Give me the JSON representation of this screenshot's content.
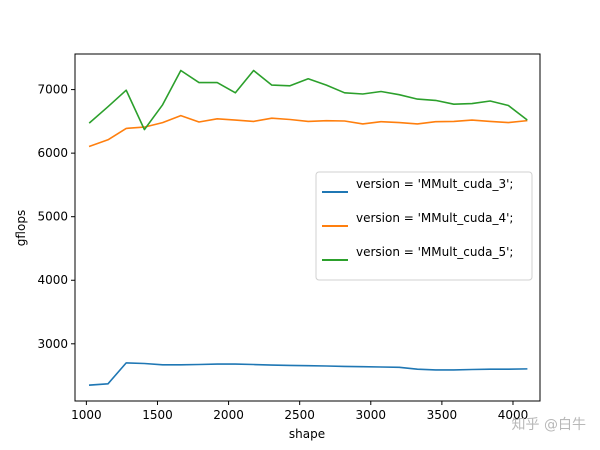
{
  "chart_data": {
    "type": "line",
    "title": "",
    "xlabel": "shape",
    "ylabel": "gflops",
    "xlim": [
      920,
      4190
    ],
    "ylim": [
      2100,
      7560
    ],
    "xticks": [
      1000,
      1500,
      2000,
      2500,
      3000,
      3500,
      4000
    ],
    "yticks": [
      3000,
      4000,
      5000,
      6000,
      7000
    ],
    "legend_position": "center-right",
    "grid": false,
    "x": [
      1024,
      1152,
      1280,
      1408,
      1536,
      1664,
      1792,
      1920,
      2048,
      2176,
      2304,
      2432,
      2560,
      2688,
      2816,
      2944,
      3072,
      3200,
      3328,
      3456,
      3584,
      3712,
      3840,
      3968,
      4096
    ],
    "series": [
      {
        "name": "version = 'MMult_cuda_3';",
        "color": "#1f77b4",
        "values": [
          2350,
          2370,
          2700,
          2690,
          2670,
          2670,
          2675,
          2680,
          2680,
          2675,
          2665,
          2660,
          2655,
          2650,
          2645,
          2640,
          2635,
          2630,
          2600,
          2590,
          2590,
          2595,
          2600,
          2600,
          2605
        ]
      },
      {
        "name": "version = 'MMult_cuda_4';",
        "color": "#ff7f0e",
        "values": [
          6110,
          6210,
          6390,
          6410,
          6480,
          6590,
          6490,
          6540,
          6520,
          6500,
          6550,
          6530,
          6500,
          6510,
          6505,
          6460,
          6495,
          6480,
          6460,
          6495,
          6500,
          6520,
          6500,
          6480,
          6510
        ]
      },
      {
        "name": "version = 'MMult_cuda_5';",
        "color": "#2ca02c",
        "values": [
          6480,
          6730,
          6990,
          6370,
          6760,
          7300,
          7110,
          7110,
          6950,
          7300,
          7070,
          7060,
          7170,
          7070,
          6950,
          6930,
          6970,
          6920,
          6850,
          6830,
          6770,
          6780,
          6820,
          6750,
          6530
        ]
      }
    ]
  },
  "watermark": "知乎 @白牛"
}
